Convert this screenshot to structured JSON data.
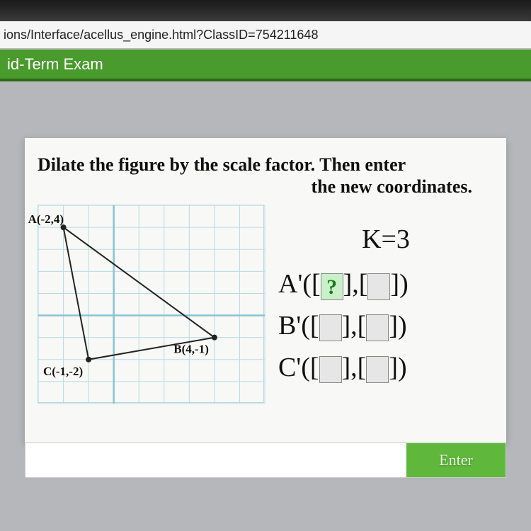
{
  "url": "ions/Interface/acellus_engine.html?ClassID=754211648",
  "exam_title": "id-Term Exam",
  "prompt_line1": "Dilate the figure by the scale factor. Then enter",
  "prompt_line2": "the new coordinates.",
  "scale_label": "K=3",
  "graph": {
    "grid_min_x": -3,
    "grid_max_x": 6,
    "grid_min_y": -4,
    "grid_max_y": 5,
    "grid_color": "#b8dbe4",
    "axis_color": "#89c4d4",
    "point_color": "#222222",
    "line_color": "#222222",
    "points": {
      "A": {
        "x": -2,
        "y": 4,
        "label": "A(-2,4)"
      },
      "B": {
        "x": 4,
        "y": -1,
        "label": "B(4,-1)"
      },
      "C": {
        "x": -1,
        "y": -2,
        "label": "C(-1,-2)"
      }
    }
  },
  "coords": [
    {
      "name": "A'",
      "x_active": true,
      "x_val": "?",
      "y_val": ""
    },
    {
      "name": "B'",
      "x_active": false,
      "x_val": "",
      "y_val": ""
    },
    {
      "name": "C'",
      "x_active": false,
      "x_val": "",
      "y_val": ""
    }
  ],
  "enter_label": "Enter",
  "colors": {
    "page_bg": "#b5b7ba",
    "bar_green": "#4a9b2e",
    "btn_green": "#5fb83c",
    "slot_active_bg": "#c9f0c9",
    "slot_active_fg": "#1a7a1a"
  }
}
